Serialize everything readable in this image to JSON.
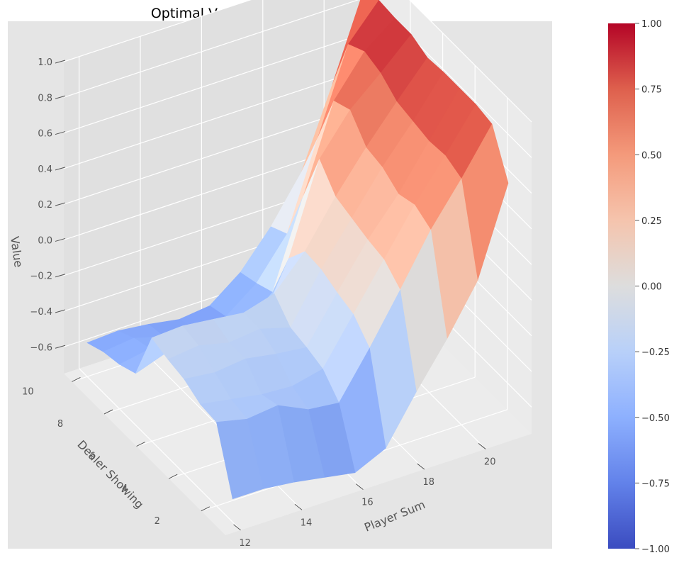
{
  "chart_data": {
    "type": "surface3d",
    "title": "Optimal Value Function (No Usable Ace)",
    "xlabel": "Player Sum",
    "ylabel": "Dealer Showing",
    "zlabel": "Value",
    "x": [
      12,
      13,
      14,
      15,
      16,
      17,
      18,
      19,
      20,
      21
    ],
    "y": [
      1,
      2,
      3,
      4,
      5,
      6,
      7,
      8,
      9,
      10
    ],
    "xticks": [
      "12",
      "14",
      "16",
      "18",
      "20"
    ],
    "yticks": [
      "2",
      "4",
      "6",
      "8",
      "10"
    ],
    "zticks": [
      "−0.6",
      "−0.4",
      "−0.2",
      "0.0",
      "0.2",
      "0.4",
      "0.6",
      "0.8",
      "1.0"
    ],
    "zlim": [
      -0.75,
      1.0
    ],
    "z": [
      [
        -0.62,
        -0.62,
        -0.64,
        -0.67,
        -0.7,
        -0.62,
        -0.36,
        -0.12,
        0.15,
        0.64
      ],
      [
        -0.28,
        -0.32,
        -0.3,
        -0.38,
        -0.4,
        -0.15,
        0.12,
        0.4,
        0.63,
        0.88
      ],
      [
        -0.27,
        -0.3,
        -0.33,
        -0.34,
        -0.3,
        -0.05,
        0.2,
        0.45,
        0.67,
        0.9
      ],
      [
        -0.22,
        -0.24,
        -0.22,
        -0.25,
        -0.27,
        -0.02,
        0.22,
        0.42,
        0.66,
        0.9
      ],
      [
        -0.2,
        -0.18,
        -0.22,
        -0.2,
        -0.25,
        0.02,
        0.25,
        0.48,
        0.68,
        0.9
      ],
      [
        -0.17,
        -0.16,
        -0.18,
        -0.2,
        -0.15,
        0.03,
        0.28,
        0.5,
        0.7,
        0.89
      ],
      [
        -0.46,
        -0.4,
        -0.45,
        -0.48,
        -0.44,
        -0.1,
        0.4,
        0.62,
        0.77,
        0.93
      ],
      [
        -0.5,
        -0.47,
        -0.52,
        -0.55,
        -0.52,
        -0.38,
        0.1,
        0.58,
        0.8,
        0.93
      ],
      [
        -0.52,
        -0.5,
        -0.55,
        -0.56,
        -0.55,
        -0.42,
        -0.2,
        0.28,
        0.75,
        0.94
      ],
      [
        -0.56,
        -0.55,
        -0.57,
        -0.6,
        -0.58,
        -0.45,
        -0.25,
        0.0,
        0.43,
        0.89
      ]
    ],
    "colormap": "coolwarm",
    "colorbar": {
      "min": -1.0,
      "max": 1.0,
      "ticks": [
        "−1.00",
        "−0.75",
        "−0.50",
        "−0.25",
        "0.00",
        "0.25",
        "0.50",
        "0.75",
        "1.00"
      ],
      "values": [
        -1.0,
        -0.75,
        -0.5,
        -0.25,
        0.0,
        0.25,
        0.5,
        0.75,
        1.0
      ]
    },
    "grid": true,
    "pane_color": "#e5e5e5",
    "view": "elev 30, azim -135"
  }
}
